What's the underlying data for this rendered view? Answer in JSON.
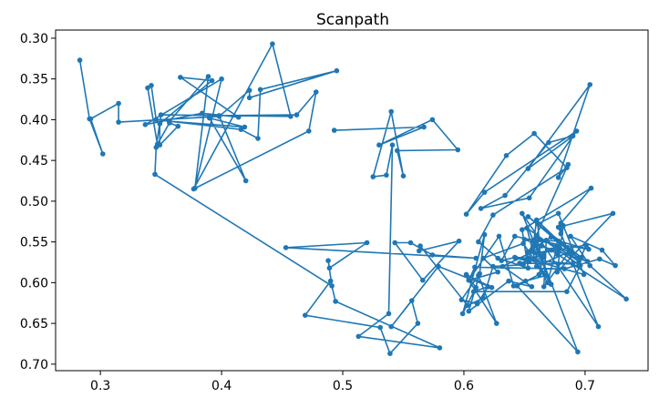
{
  "chart_data": {
    "type": "line",
    "title": "Scanpath",
    "xlabel": "",
    "ylabel": "",
    "xlim": [
      0.263,
      0.752
    ],
    "ylim": [
      0.708,
      0.29
    ],
    "y_inverted": true,
    "grid": false,
    "color": "#1f77b4",
    "marker": "circle",
    "x_ticks": [
      "0.3",
      "0.4",
      "0.5",
      "0.6",
      "0.7"
    ],
    "y_ticks": [
      "0.30",
      "0.35",
      "0.40",
      "0.45",
      "0.50",
      "0.55",
      "0.60",
      "0.65",
      "0.70"
    ],
    "series": [
      {
        "points": [
          [
            0.283,
            0.327
          ],
          [
            0.291,
            0.399
          ],
          [
            0.302,
            0.442
          ],
          [
            0.292,
            0.399
          ],
          [
            0.315,
            0.38
          ],
          [
            0.315,
            0.403
          ],
          [
            0.398,
            0.396
          ],
          [
            0.423,
            0.364
          ],
          [
            0.423,
            0.373
          ],
          [
            0.495,
            0.34
          ],
          [
            0.432,
            0.363
          ],
          [
            0.43,
            0.423
          ],
          [
            0.416,
            0.412
          ],
          [
            0.346,
            0.4
          ],
          [
            0.342,
            0.358
          ],
          [
            0.339,
            0.361
          ],
          [
            0.347,
            0.43
          ],
          [
            0.357,
            0.404
          ],
          [
            0.364,
            0.408
          ],
          [
            0.349,
            0.431
          ],
          [
            0.349,
            0.405
          ],
          [
            0.392,
            0.352
          ],
          [
            0.366,
            0.348
          ],
          [
            0.414,
            0.397
          ],
          [
            0.384,
            0.392
          ],
          [
            0.337,
            0.406
          ],
          [
            0.4,
            0.35
          ],
          [
            0.378,
            0.484
          ],
          [
            0.389,
            0.347
          ],
          [
            0.357,
            0.402
          ],
          [
            0.419,
            0.409
          ],
          [
            0.39,
            0.398
          ],
          [
            0.42,
            0.475
          ],
          [
            0.398,
            0.395
          ],
          [
            0.462,
            0.394
          ],
          [
            0.478,
            0.366
          ],
          [
            0.472,
            0.414
          ],
          [
            0.377,
            0.485
          ],
          [
            0.442,
            0.307
          ],
          [
            0.457,
            0.396
          ],
          [
            0.35,
            0.394
          ],
          [
            0.346,
            0.434
          ],
          [
            0.345,
            0.467
          ],
          [
            0.491,
            0.604
          ],
          [
            0.488,
            0.573
          ],
          [
            0.489,
            0.582
          ],
          [
            0.52,
            0.551
          ],
          [
            0.453,
            0.557
          ],
          [
            0.61,
            0.57
          ],
          [
            0.574,
            0.566
          ],
          [
            0.556,
            0.551
          ],
          [
            0.543,
            0.551
          ],
          [
            0.566,
            0.597
          ],
          [
            0.596,
            0.549
          ],
          [
            0.563,
            0.561
          ],
          [
            0.564,
            0.555
          ],
          [
            0.603,
            0.628
          ],
          [
            0.616,
            0.619
          ],
          [
            0.624,
            0.58
          ],
          [
            0.649,
            0.578
          ],
          [
            0.686,
            0.455
          ],
          [
            0.678,
            0.471
          ],
          [
            0.704,
            0.357
          ],
          [
            0.653,
            0.46
          ],
          [
            0.69,
            0.42
          ],
          [
            0.67,
            0.428
          ],
          [
            0.634,
            0.493
          ],
          [
            0.614,
            0.509
          ],
          [
            0.654,
            0.496
          ],
          [
            0.693,
            0.414
          ],
          [
            0.617,
            0.489
          ],
          [
            0.602,
            0.516
          ],
          [
            0.635,
            0.444
          ],
          [
            0.658,
            0.417
          ],
          [
            0.685,
            0.459
          ],
          [
            0.624,
            0.517
          ],
          [
            0.612,
            0.55
          ],
          [
            0.628,
            0.57
          ],
          [
            0.653,
            0.582
          ],
          [
            0.648,
            0.535
          ],
          [
            0.705,
            0.484
          ],
          [
            0.68,
            0.527
          ],
          [
            0.68,
            0.54
          ],
          [
            0.682,
            0.53
          ],
          [
            0.677,
            0.587
          ],
          [
            0.723,
            0.515
          ],
          [
            0.678,
            0.532
          ],
          [
            0.711,
            0.654
          ],
          [
            0.648,
            0.515
          ],
          [
            0.672,
            0.602
          ],
          [
            0.649,
            0.552
          ],
          [
            0.616,
            0.57
          ],
          [
            0.628,
            0.587
          ],
          [
            0.604,
            0.597
          ],
          [
            0.629,
            0.543
          ],
          [
            0.641,
            0.604
          ],
          [
            0.651,
            0.598
          ],
          [
            0.668,
            0.591
          ],
          [
            0.658,
            0.572
          ],
          [
            0.669,
            0.6
          ],
          [
            0.677,
            0.555
          ],
          [
            0.654,
            0.574
          ],
          [
            0.643,
            0.57
          ],
          [
            0.69,
            0.577
          ],
          [
            0.646,
            0.576
          ],
          [
            0.666,
            0.569
          ],
          [
            0.664,
            0.568
          ],
          [
            0.66,
            0.543
          ],
          [
            0.653,
            0.571
          ],
          [
            0.699,
            0.59
          ],
          [
            0.696,
            0.579
          ],
          [
            0.685,
            0.611
          ],
          [
            0.608,
            0.611
          ],
          [
            0.62,
            0.605
          ],
          [
            0.611,
            0.626
          ],
          [
            0.598,
            0.621
          ],
          [
            0.612,
            0.591
          ],
          [
            0.627,
            0.65
          ],
          [
            0.604,
            0.597
          ],
          [
            0.609,
            0.581
          ],
          [
            0.683,
            0.583
          ],
          [
            0.712,
            0.571
          ],
          [
            0.725,
            0.579
          ],
          [
            0.714,
            0.56
          ],
          [
            0.688,
            0.543
          ],
          [
            0.704,
            0.579
          ],
          [
            0.734,
            0.62
          ],
          [
            0.677,
            0.565
          ],
          [
            0.672,
            0.56
          ],
          [
            0.65,
            0.547
          ],
          [
            0.678,
            0.549
          ],
          [
            0.703,
            0.559
          ],
          [
            0.657,
            0.548
          ],
          [
            0.642,
            0.543
          ],
          [
            0.631,
            0.573
          ],
          [
            0.642,
            0.569
          ],
          [
            0.654,
            0.57
          ],
          [
            0.666,
            0.566
          ],
          [
            0.662,
            0.59
          ],
          [
            0.644,
            0.604
          ],
          [
            0.694,
            0.685
          ],
          [
            0.659,
            0.55
          ],
          [
            0.653,
            0.562
          ],
          [
            0.672,
            0.544
          ],
          [
            0.697,
            0.569
          ],
          [
            0.653,
            0.519
          ],
          [
            0.689,
            0.564
          ],
          [
            0.66,
            0.523
          ],
          [
            0.657,
            0.557
          ],
          [
            0.662,
            0.547
          ],
          [
            0.661,
            0.528
          ],
          [
            0.678,
            0.515
          ],
          [
            0.695,
            0.578
          ],
          [
            0.652,
            0.533
          ],
          [
            0.66,
            0.58
          ],
          [
            0.687,
            0.562
          ],
          [
            0.666,
            0.605
          ],
          [
            0.668,
            0.548
          ],
          [
            0.695,
            0.574
          ],
          [
            0.701,
            0.554
          ],
          [
            0.66,
            0.564
          ],
          [
            0.679,
            0.557
          ],
          [
            0.702,
            0.574
          ],
          [
            0.664,
            0.555
          ],
          [
            0.657,
            0.562
          ],
          [
            0.632,
            0.58
          ],
          [
            0.656,
            0.605
          ],
          [
            0.637,
            0.598
          ],
          [
            0.604,
            0.635
          ],
          [
            0.613,
            0.589
          ],
          [
            0.617,
            0.541
          ],
          [
            0.599,
            0.638
          ],
          [
            0.61,
            0.606
          ],
          [
            0.602,
            0.59
          ],
          [
            0.623,
            0.606
          ],
          [
            0.579,
            0.58
          ],
          [
            0.54,
            0.654
          ],
          [
            0.557,
            0.622
          ],
          [
            0.562,
            0.65
          ],
          [
            0.539,
            0.687
          ],
          [
            0.531,
            0.655
          ],
          [
            0.469,
            0.64
          ],
          [
            0.49,
            0.598
          ],
          [
            0.494,
            0.623
          ],
          [
            0.58,
            0.68
          ],
          [
            0.513,
            0.666
          ],
          [
            0.538,
            0.638
          ],
          [
            0.541,
            0.431
          ],
          [
            0.536,
            0.468
          ],
          [
            0.525,
            0.47
          ],
          [
            0.54,
            0.39
          ],
          [
            0.55,
            0.469
          ],
          [
            0.545,
            0.438
          ],
          [
            0.595,
            0.437
          ],
          [
            0.574,
            0.4
          ],
          [
            0.53,
            0.431
          ],
          [
            0.567,
            0.409
          ],
          [
            0.493,
            0.413
          ]
        ]
      }
    ]
  }
}
